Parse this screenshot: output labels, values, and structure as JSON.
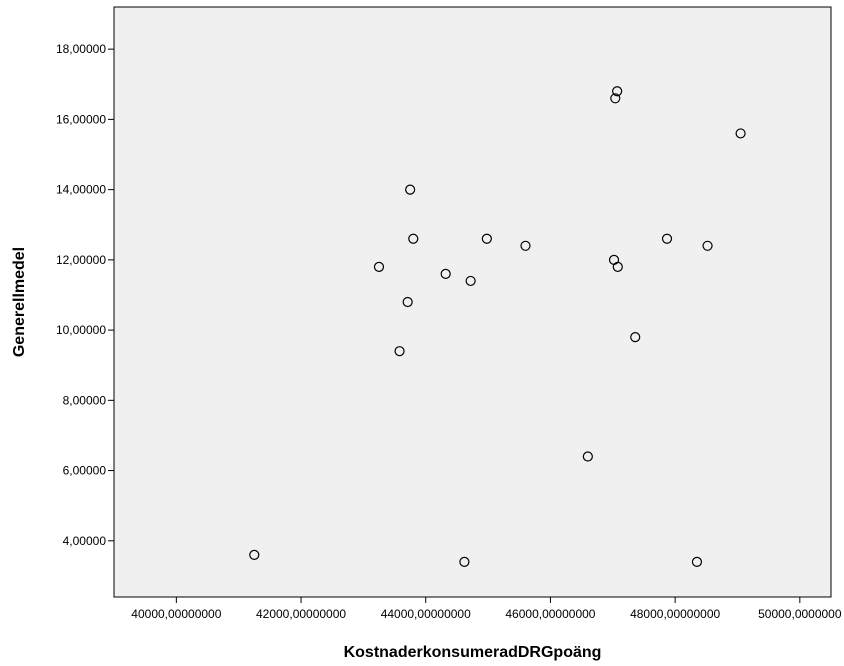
{
  "chart_data": {
    "type": "scatter",
    "title": "",
    "xlabel": "KostnaderkonsumeradDRGpoäng",
    "ylabel": "Generellmedel",
    "xlim": [
      39000,
      50500
    ],
    "ylim": [
      2.4,
      19.2
    ],
    "xticks": [
      40000,
      42000,
      44000,
      46000,
      48000,
      50000
    ],
    "xtick_labels": [
      "40000,00000000",
      "42000,00000000",
      "44000,00000000",
      "46000,00000000",
      "48000,00000000",
      "50000,0000000"
    ],
    "yticks": [
      4,
      6,
      8,
      10,
      12,
      14,
      16,
      18
    ],
    "ytick_labels": [
      "4,00000",
      "6,00000",
      "8,00000",
      "10,00000",
      "12,00000",
      "14,00000",
      "16,00000",
      "18,00000"
    ],
    "grid": false,
    "legend": "none",
    "marker": "open-circle",
    "plot_background": "#f0f0f0",
    "marker_color": "#000000",
    "points": [
      {
        "x": 41250,
        "y": 3.6
      },
      {
        "x": 43250,
        "y": 11.8
      },
      {
        "x": 43580,
        "y": 9.4
      },
      {
        "x": 43710,
        "y": 10.8
      },
      {
        "x": 43750,
        "y": 14.0
      },
      {
        "x": 43800,
        "y": 12.6
      },
      {
        "x": 44320,
        "y": 11.6
      },
      {
        "x": 44620,
        "y": 3.4
      },
      {
        "x": 44720,
        "y": 11.4
      },
      {
        "x": 44980,
        "y": 12.6
      },
      {
        "x": 45600,
        "y": 12.4
      },
      {
        "x": 46600,
        "y": 6.4
      },
      {
        "x": 47020,
        "y": 12.0
      },
      {
        "x": 47040,
        "y": 16.6
      },
      {
        "x": 47070,
        "y": 16.8
      },
      {
        "x": 47080,
        "y": 11.8
      },
      {
        "x": 47360,
        "y": 9.8
      },
      {
        "x": 47870,
        "y": 12.6
      },
      {
        "x": 48350,
        "y": 3.4
      },
      {
        "x": 48520,
        "y": 12.4
      },
      {
        "x": 49050,
        "y": 15.6
      }
    ]
  }
}
